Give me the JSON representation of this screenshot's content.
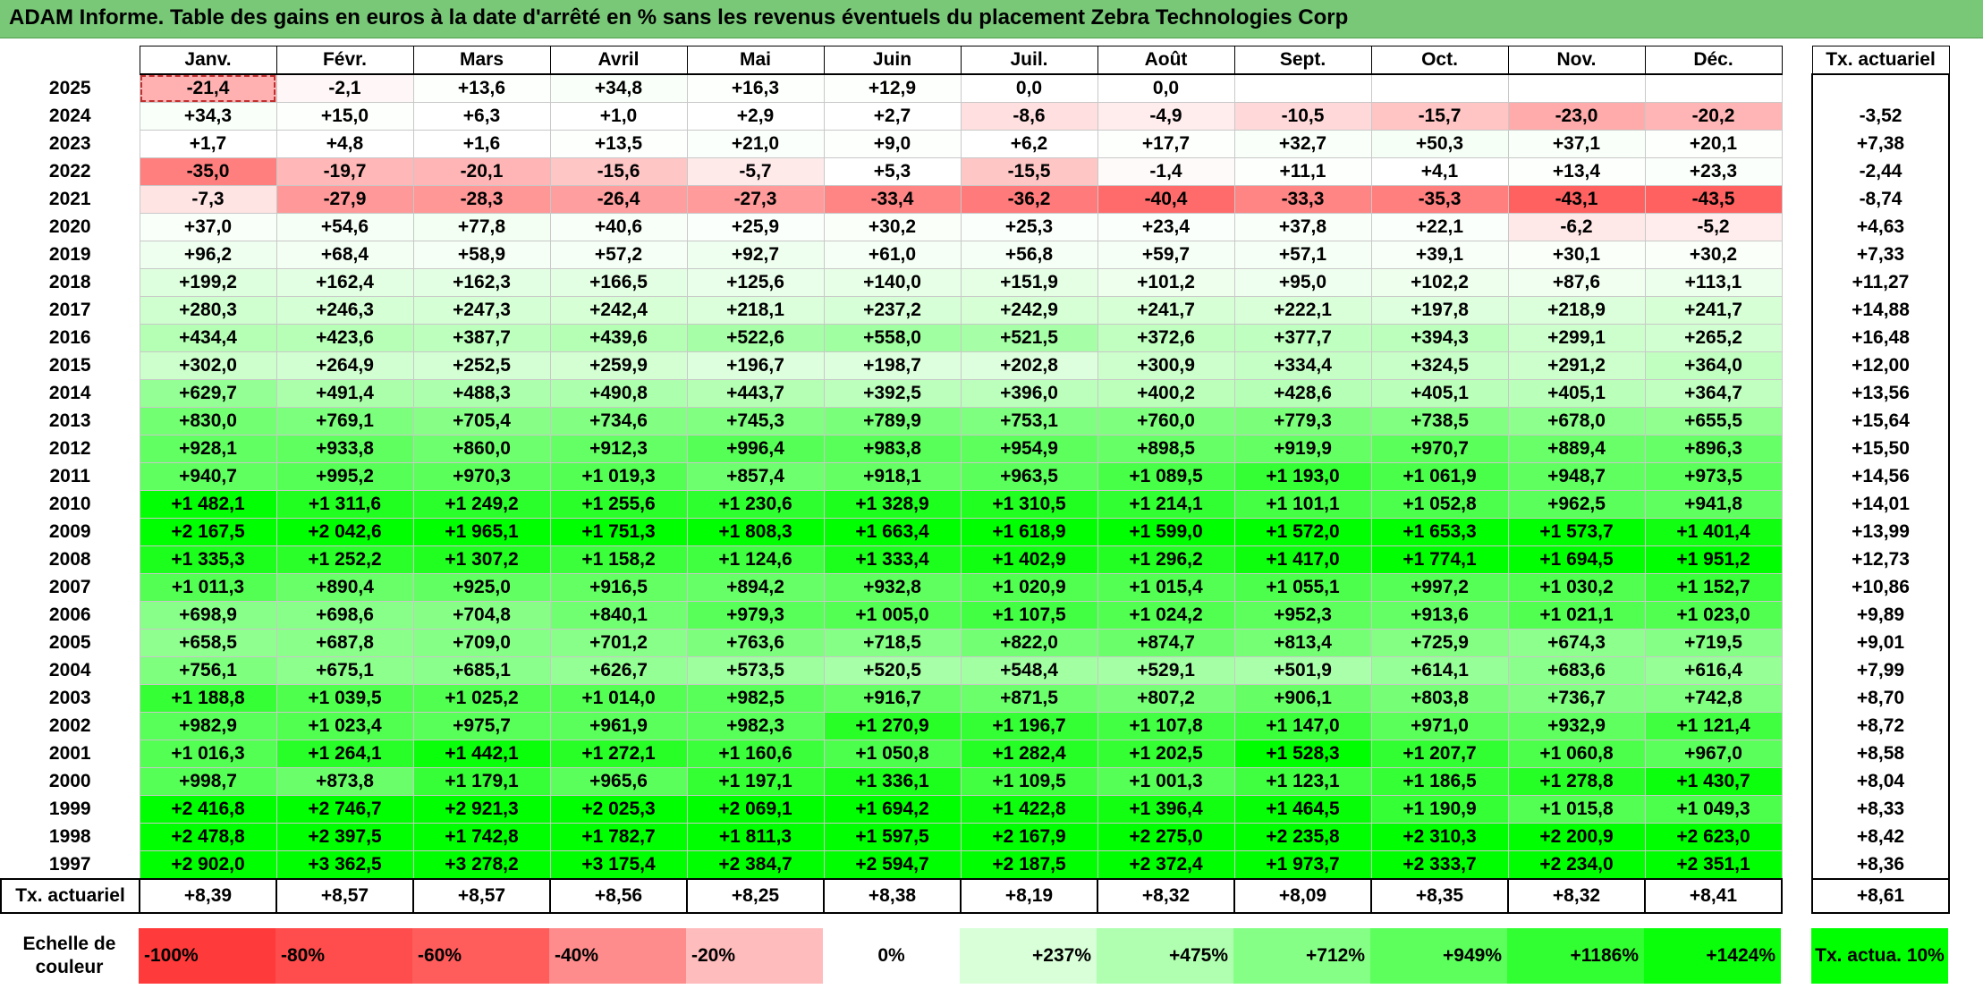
{
  "title": "ADAM Informe. Table des gains en euros à la date d'arrêté en % sans les revenus éventuels du placement Zebra Technologies Corp",
  "months": [
    "Janv.",
    "Févr.",
    "Mars",
    "Avril",
    "Mai",
    "Juin",
    "Juil.",
    "Août",
    "Sept.",
    "Oct.",
    "Nov.",
    "Déc."
  ],
  "tx_header": "Tx. actuariel",
  "rows": [
    {
      "year": "2025",
      "values": [
        "-21,4",
        "-2,1",
        "+13,6",
        "+34,8",
        "+16,3",
        "+12,9",
        "0,0",
        "0,0",
        "",
        "",
        "",
        ""
      ],
      "tx": ""
    },
    {
      "year": "2024",
      "values": [
        "+34,3",
        "+15,0",
        "+6,3",
        "+1,0",
        "+2,9",
        "+2,7",
        "-8,6",
        "-4,9",
        "-10,5",
        "-15,7",
        "-23,0",
        "-20,2"
      ],
      "tx": "-3,52"
    },
    {
      "year": "2023",
      "values": [
        "+1,7",
        "+4,8",
        "+1,6",
        "+13,5",
        "+21,0",
        "+9,0",
        "+6,2",
        "+17,7",
        "+32,7",
        "+50,3",
        "+37,1",
        "+20,1"
      ],
      "tx": "+7,38"
    },
    {
      "year": "2022",
      "values": [
        "-35,0",
        "-19,7",
        "-20,1",
        "-15,6",
        "-5,7",
        "+5,3",
        "-15,5",
        "-1,4",
        "+11,1",
        "+4,1",
        "+13,4",
        "+23,3"
      ],
      "tx": "-2,44"
    },
    {
      "year": "2021",
      "values": [
        "-7,3",
        "-27,9",
        "-28,3",
        "-26,4",
        "-27,3",
        "-33,4",
        "-36,2",
        "-40,4",
        "-33,3",
        "-35,3",
        "-43,1",
        "-43,5"
      ],
      "tx": "-8,74"
    },
    {
      "year": "2020",
      "values": [
        "+37,0",
        "+54,6",
        "+77,8",
        "+40,6",
        "+25,9",
        "+30,2",
        "+25,3",
        "+23,4",
        "+37,8",
        "+22,1",
        "-6,2",
        "-5,2"
      ],
      "tx": "+4,63"
    },
    {
      "year": "2019",
      "values": [
        "+96,2",
        "+68,4",
        "+58,9",
        "+57,2",
        "+92,7",
        "+61,0",
        "+56,8",
        "+59,7",
        "+57,1",
        "+39,1",
        "+30,1",
        "+30,2"
      ],
      "tx": "+7,33"
    },
    {
      "year": "2018",
      "values": [
        "+199,2",
        "+162,4",
        "+162,3",
        "+166,5",
        "+125,6",
        "+140,0",
        "+151,9",
        "+101,2",
        "+95,0",
        "+102,2",
        "+87,6",
        "+113,1"
      ],
      "tx": "+11,27"
    },
    {
      "year": "2017",
      "values": [
        "+280,3",
        "+246,3",
        "+247,3",
        "+242,4",
        "+218,1",
        "+237,2",
        "+242,9",
        "+241,7",
        "+222,1",
        "+197,8",
        "+218,9",
        "+241,7"
      ],
      "tx": "+14,88"
    },
    {
      "year": "2016",
      "values": [
        "+434,4",
        "+423,6",
        "+387,7",
        "+439,6",
        "+522,6",
        "+558,0",
        "+521,5",
        "+372,6",
        "+377,7",
        "+394,3",
        "+299,1",
        "+265,2"
      ],
      "tx": "+16,48"
    },
    {
      "year": "2015",
      "values": [
        "+302,0",
        "+264,9",
        "+252,5",
        "+259,9",
        "+196,7",
        "+198,7",
        "+202,8",
        "+300,9",
        "+334,4",
        "+324,5",
        "+291,2",
        "+364,0"
      ],
      "tx": "+12,00"
    },
    {
      "year": "2014",
      "values": [
        "+629,7",
        "+491,4",
        "+488,3",
        "+490,8",
        "+443,7",
        "+392,5",
        "+396,0",
        "+400,2",
        "+428,6",
        "+405,1",
        "+405,1",
        "+364,7"
      ],
      "tx": "+13,56"
    },
    {
      "year": "2013",
      "values": [
        "+830,0",
        "+769,1",
        "+705,4",
        "+734,6",
        "+745,3",
        "+789,9",
        "+753,1",
        "+760,0",
        "+779,3",
        "+738,5",
        "+678,0",
        "+655,5"
      ],
      "tx": "+15,64"
    },
    {
      "year": "2012",
      "values": [
        "+928,1",
        "+933,8",
        "+860,0",
        "+912,3",
        "+996,4",
        "+983,8",
        "+954,9",
        "+898,5",
        "+919,9",
        "+970,7",
        "+889,4",
        "+896,3"
      ],
      "tx": "+15,50"
    },
    {
      "year": "2011",
      "values": [
        "+940,7",
        "+995,2",
        "+970,3",
        "+1 019,3",
        "+857,4",
        "+918,1",
        "+963,5",
        "+1 089,5",
        "+1 193,0",
        "+1 061,9",
        "+948,7",
        "+973,5"
      ],
      "tx": "+14,56"
    },
    {
      "year": "2010",
      "values": [
        "+1 482,1",
        "+1 311,6",
        "+1 249,2",
        "+1 255,6",
        "+1 230,6",
        "+1 328,9",
        "+1 310,5",
        "+1 214,1",
        "+1 101,1",
        "+1 052,8",
        "+962,5",
        "+941,8"
      ],
      "tx": "+14,01"
    },
    {
      "year": "2009",
      "values": [
        "+2 167,5",
        "+2 042,6",
        "+1 965,1",
        "+1 751,3",
        "+1 808,3",
        "+1 663,4",
        "+1 618,9",
        "+1 599,0",
        "+1 572,0",
        "+1 653,3",
        "+1 573,7",
        "+1 401,4"
      ],
      "tx": "+13,99"
    },
    {
      "year": "2008",
      "values": [
        "+1 335,3",
        "+1 252,2",
        "+1 307,2",
        "+1 158,2",
        "+1 124,6",
        "+1 333,4",
        "+1 402,9",
        "+1 296,2",
        "+1 417,0",
        "+1 774,1",
        "+1 694,5",
        "+1 951,2"
      ],
      "tx": "+12,73"
    },
    {
      "year": "2007",
      "values": [
        "+1 011,3",
        "+890,4",
        "+925,0",
        "+916,5",
        "+894,2",
        "+932,8",
        "+1 020,9",
        "+1 015,4",
        "+1 055,1",
        "+997,2",
        "+1 030,2",
        "+1 152,7"
      ],
      "tx": "+10,86"
    },
    {
      "year": "2006",
      "values": [
        "+698,9",
        "+698,6",
        "+704,8",
        "+840,1",
        "+979,3",
        "+1 005,0",
        "+1 107,5",
        "+1 024,2",
        "+952,3",
        "+913,6",
        "+1 021,1",
        "+1 023,0"
      ],
      "tx": "+9,89"
    },
    {
      "year": "2005",
      "values": [
        "+658,5",
        "+687,8",
        "+709,0",
        "+701,2",
        "+763,6",
        "+718,5",
        "+822,0",
        "+874,7",
        "+813,4",
        "+725,9",
        "+674,3",
        "+719,5"
      ],
      "tx": "+9,01"
    },
    {
      "year": "2004",
      "values": [
        "+756,1",
        "+675,1",
        "+685,1",
        "+626,7",
        "+573,5",
        "+520,5",
        "+548,4",
        "+529,1",
        "+501,9",
        "+614,1",
        "+683,6",
        "+616,4"
      ],
      "tx": "+7,99"
    },
    {
      "year": "2003",
      "values": [
        "+1 188,8",
        "+1 039,5",
        "+1 025,2",
        "+1 014,0",
        "+982,5",
        "+916,7",
        "+871,5",
        "+807,2",
        "+906,1",
        "+803,8",
        "+736,7",
        "+742,8"
      ],
      "tx": "+8,70"
    },
    {
      "year": "2002",
      "values": [
        "+982,9",
        "+1 023,4",
        "+975,7",
        "+961,9",
        "+982,3",
        "+1 270,9",
        "+1 196,7",
        "+1 107,8",
        "+1 147,0",
        "+971,0",
        "+932,9",
        "+1 121,4"
      ],
      "tx": "+8,72"
    },
    {
      "year": "2001",
      "values": [
        "+1 016,3",
        "+1 264,1",
        "+1 442,1",
        "+1 272,1",
        "+1 160,6",
        "+1 050,8",
        "+1 282,4",
        "+1 202,5",
        "+1 528,3",
        "+1 207,7",
        "+1 060,8",
        "+967,0"
      ],
      "tx": "+8,58"
    },
    {
      "year": "2000",
      "values": [
        "+998,7",
        "+873,8",
        "+1 179,1",
        "+965,6",
        "+1 197,1",
        "+1 336,1",
        "+1 109,5",
        "+1 001,3",
        "+1 123,1",
        "+1 186,5",
        "+1 278,8",
        "+1 430,7"
      ],
      "tx": "+8,04"
    },
    {
      "year": "1999",
      "values": [
        "+2 416,8",
        "+2 746,7",
        "+2 921,3",
        "+2 025,3",
        "+2 069,1",
        "+1 694,2",
        "+1 422,8",
        "+1 396,4",
        "+1 464,5",
        "+1 190,9",
        "+1 015,8",
        "+1 049,3"
      ],
      "tx": "+8,33"
    },
    {
      "year": "1998",
      "values": [
        "+2 478,8",
        "+2 397,5",
        "+1 742,8",
        "+1 782,7",
        "+1 811,3",
        "+1 597,5",
        "+2 167,9",
        "+2 275,0",
        "+2 235,8",
        "+2 310,3",
        "+2 200,9",
        "+2 623,0"
      ],
      "tx": "+8,42"
    },
    {
      "year": "1997",
      "values": [
        "+2 902,0",
        "+3 362,5",
        "+3 278,2",
        "+3 175,4",
        "+2 384,7",
        "+2 594,7",
        "+2 187,5",
        "+2 372,4",
        "+1 973,7",
        "+2 333,7",
        "+2 234,0",
        "+2 351,1"
      ],
      "tx": "+8,36"
    }
  ],
  "annual": {
    "label": "Tx. actuariel",
    "values": [
      "+8,39",
      "+8,57",
      "+8,57",
      "+8,56",
      "+8,25",
      "+8,38",
      "+8,19",
      "+8,32",
      "+8,09",
      "+8,35",
      "+8,32",
      "+8,41"
    ],
    "tx": "+8,61"
  },
  "scale": {
    "label": "Echelle de couleur",
    "steps": [
      {
        "text": "-100%",
        "color": "#ff3a3a"
      },
      {
        "text": "-80%",
        "color": "#ff4c4c"
      },
      {
        "text": "-60%",
        "color": "#ff5c5c"
      },
      {
        "text": "-40%",
        "color": "#ff8c8c"
      },
      {
        "text": "-20%",
        "color": "#ffbcbc"
      },
      {
        "text": "0%",
        "color": "#ffffff"
      },
      {
        "text": "+237%",
        "color": "#d8ffd8"
      },
      {
        "text": "+475%",
        "color": "#b0ffb0"
      },
      {
        "text": "+712%",
        "color": "#86ff86"
      },
      {
        "text": "+949%",
        "color": "#5cff5c"
      },
      {
        "text": "+1186%",
        "color": "#32ff32"
      },
      {
        "text": "+1424%",
        "color": "#0aff0a"
      }
    ],
    "tx_label": "Tx. actua. 10%",
    "tx_color": "#00ff00"
  }
}
